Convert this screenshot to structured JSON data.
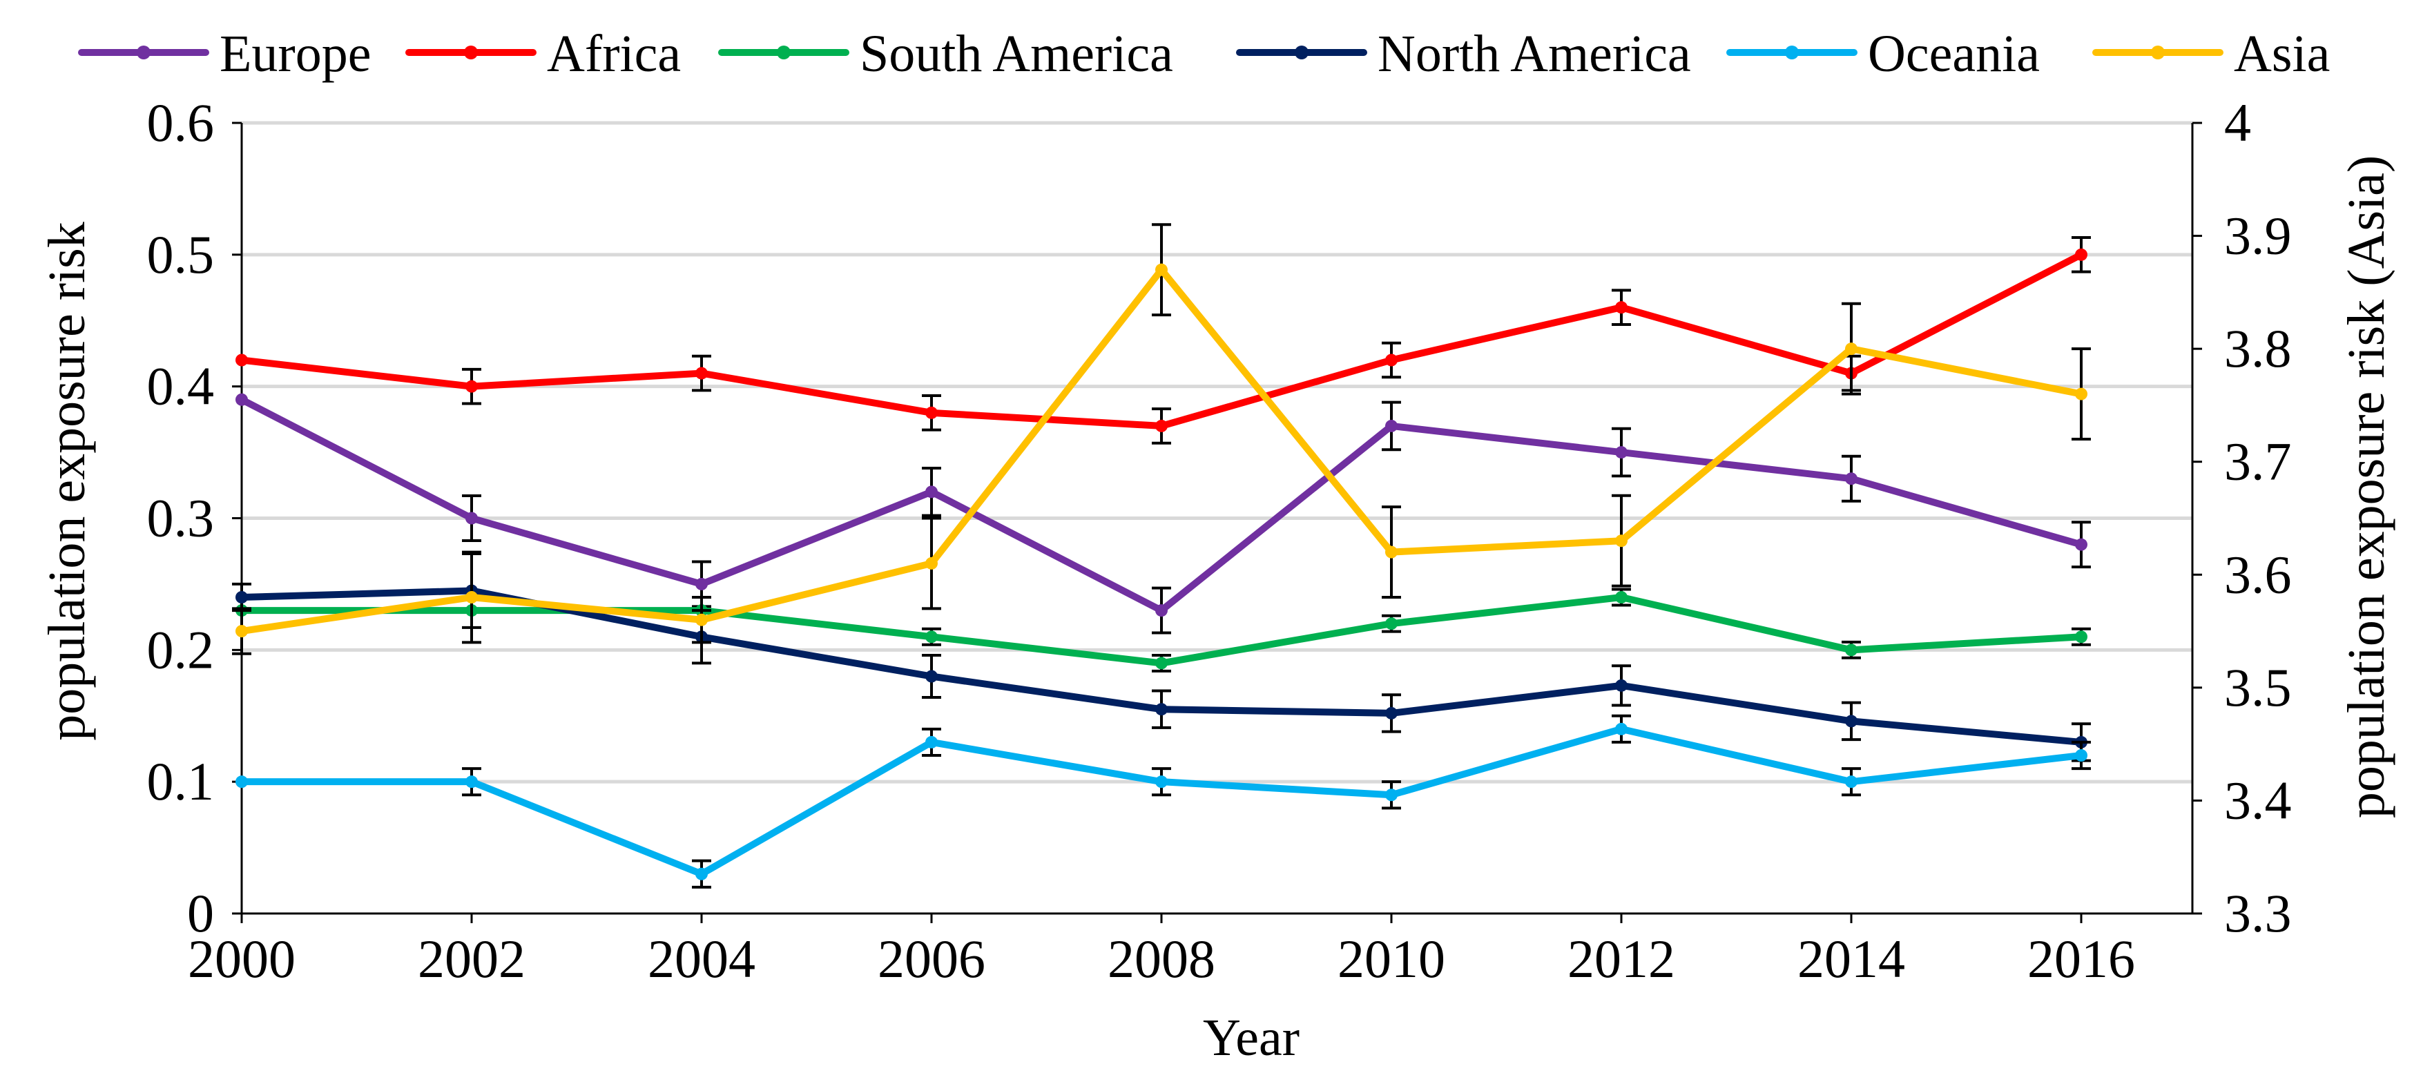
{
  "chart_data": {
    "type": "line",
    "title": "",
    "xlabel": "Year",
    "ylabel": "population exposure risk",
    "ylabel_right": "population exposure risk (Asia)",
    "x": [
      "2000",
      "2002",
      "2004",
      "2006",
      "2008",
      "2010",
      "2012",
      "2014",
      "2016"
    ],
    "ylim": [
      0,
      0.6
    ],
    "yticks": [
      "0",
      "0.1",
      "0.2",
      "0.3",
      "0.4",
      "0.5",
      "0.6"
    ],
    "ylim_right": [
      3.3,
      4.0
    ],
    "yticks_right": [
      "3.3",
      "3.4",
      "3.5",
      "3.6",
      "3.7",
      "3.8",
      "3.9",
      "4"
    ],
    "grid": true,
    "legend_position": "top",
    "series": [
      {
        "name": "Europe",
        "color": "#7030A0",
        "axis": "left",
        "values": [
          0.39,
          0.3,
          0.25,
          0.32,
          0.23,
          0.37,
          0.35,
          0.33,
          0.28
        ],
        "errors": [
          0.0,
          0.017,
          0.017,
          0.018,
          0.017,
          0.018,
          0.018,
          0.017,
          0.017
        ]
      },
      {
        "name": "Africa",
        "color": "#FF0000",
        "axis": "left",
        "values": [
          0.42,
          0.4,
          0.41,
          0.38,
          0.37,
          0.42,
          0.46,
          0.41,
          0.5
        ],
        "errors": [
          0.0,
          0.013,
          0.013,
          0.013,
          0.013,
          0.013,
          0.013,
          0.013,
          0.013
        ]
      },
      {
        "name": "South America",
        "color": "#00B050",
        "axis": "left",
        "values": [
          0.23,
          0.23,
          0.23,
          0.21,
          0.19,
          0.22,
          0.24,
          0.2,
          0.21
        ],
        "errors": [
          0.0,
          0.0,
          0.0,
          0.006,
          0.006,
          0.006,
          0.006,
          0.006,
          0.006
        ]
      },
      {
        "name": "North America",
        "color": "#002060",
        "axis": "left",
        "values": [
          0.24,
          0.245,
          0.21,
          0.18,
          0.155,
          0.152,
          0.173,
          0.146,
          0.13
        ],
        "errors": [
          0.01,
          0.028,
          0.02,
          0.016,
          0.014,
          0.014,
          0.015,
          0.014,
          0.014
        ]
      },
      {
        "name": "Oceania",
        "color": "#00B0F0",
        "axis": "left",
        "values": [
          0.1,
          0.1,
          0.03,
          0.13,
          0.1,
          0.09,
          0.14,
          0.1,
          0.12
        ],
        "errors": [
          0.0,
          0.01,
          0.01,
          0.01,
          0.01,
          0.01,
          0.01,
          0.01,
          0.01
        ]
      },
      {
        "name": "Asia",
        "color": "#FFC000",
        "axis": "right",
        "values": [
          3.55,
          3.58,
          3.56,
          3.61,
          3.87,
          3.62,
          3.63,
          3.8,
          3.76
        ],
        "errors": [
          0.02,
          0.04,
          0.02,
          0.04,
          0.04,
          0.04,
          0.04,
          0.04,
          0.04
        ]
      }
    ]
  }
}
